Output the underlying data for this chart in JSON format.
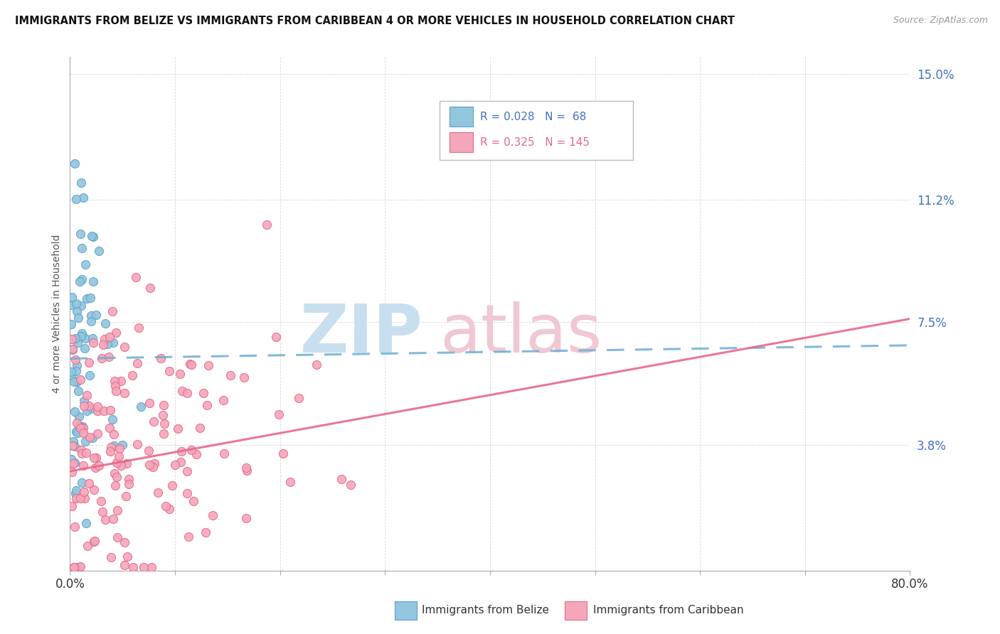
{
  "title": "IMMIGRANTS FROM BELIZE VS IMMIGRANTS FROM CARIBBEAN 4 OR MORE VEHICLES IN HOUSEHOLD CORRELATION CHART",
  "source": "Source: ZipAtlas.com",
  "ylabel": "4 or more Vehicles in Household",
  "xmin": 0.0,
  "xmax": 0.8,
  "ymin": 0.0,
  "ymax": 0.155,
  "belize_color": "#92C5DE",
  "belize_edge_color": "#5BA3C9",
  "caribbean_color": "#F4A7B9",
  "caribbean_edge_color": "#E8688A",
  "belize_line_color": "#6BAED6",
  "caribbean_line_color": "#E8688A",
  "watermark_zip_color": "#C8DFF0",
  "watermark_atlas_color": "#F0C8D4",
  "legend_box_color": "#dddddd",
  "tick_color": "#4472C4",
  "grid_color": "#cccccc",
  "belize_R": 0.028,
  "belize_N": 68,
  "caribbean_R": 0.325,
  "caribbean_N": 145,
  "belize_line_start_x": 0.0,
  "belize_line_start_y": 0.064,
  "belize_line_end_x": 0.8,
  "belize_line_end_y": 0.068,
  "caribbean_line_start_x": 0.0,
  "caribbean_line_start_y": 0.03,
  "caribbean_line_end_x": 0.8,
  "caribbean_line_end_y": 0.076
}
